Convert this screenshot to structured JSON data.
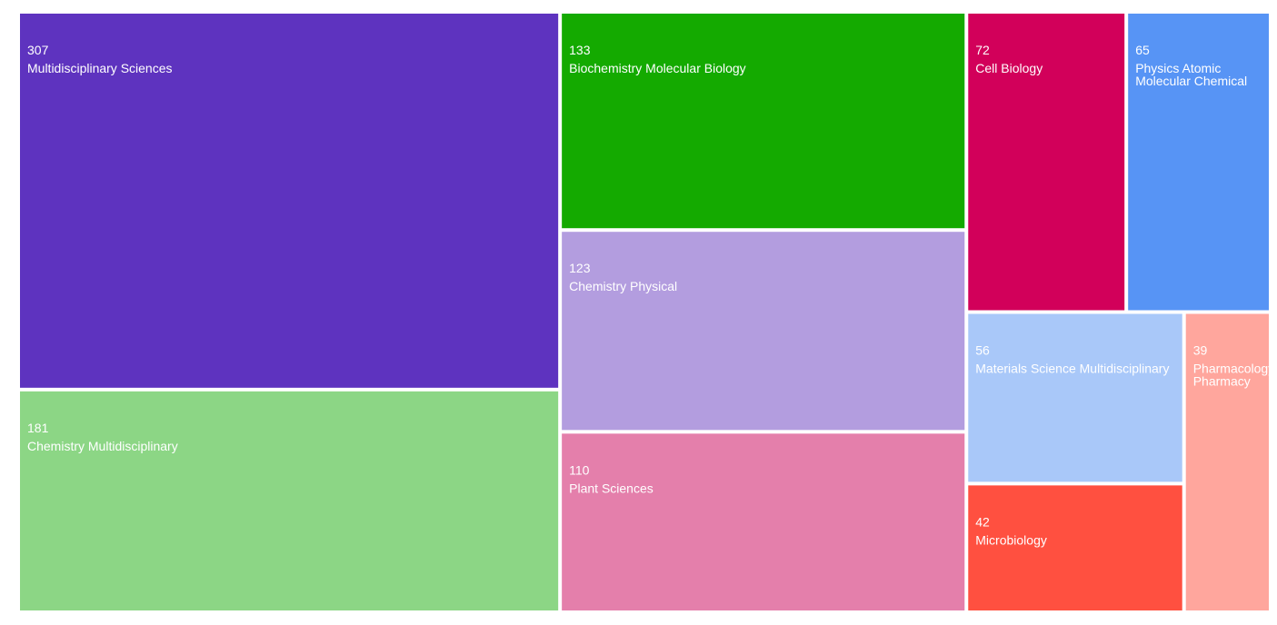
{
  "chart_data": {
    "type": "treemap",
    "categories": [
      "Multidisciplinary Sciences",
      "Chemistry Multidisciplinary",
      "Biochemistry Molecular Biology",
      "Chemistry Physical",
      "Plant Sciences",
      "Cell Biology",
      "Physics Atomic Molecular Chemical",
      "Materials Science Multidisciplinary",
      "Microbiology",
      "Pharmacology Pharmacy"
    ],
    "values": [
      307,
      181,
      133,
      123,
      110,
      72,
      65,
      56,
      42,
      39
    ],
    "colors": [
      "#5e33bf",
      "#8cd685",
      "#14aa00",
      "#b39ddf",
      "#e47fab",
      "#d2005a",
      "#5794f5",
      "#a9c8f9",
      "#ff5040",
      "#ffa69d"
    ]
  }
}
